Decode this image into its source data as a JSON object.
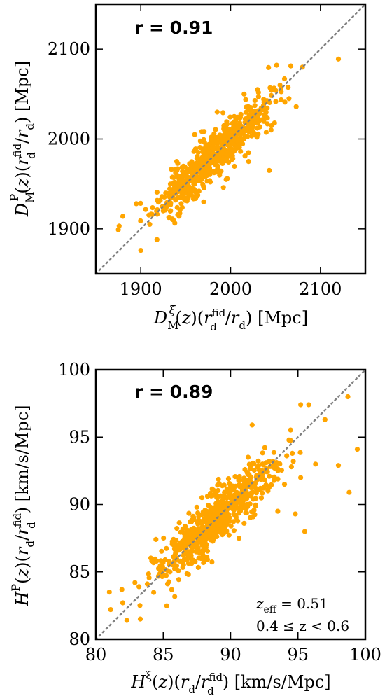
{
  "chart_data": [
    {
      "type": "scatter",
      "title": "",
      "xlabel": "D_M^ξ(z)(r_d^fid/r_d) [Mpc]",
      "ylabel": "D_M^P(z)(r_d^fid/r_d) [Mpc]",
      "xlim": [
        1850,
        2150
      ],
      "ylim": [
        1850,
        2150
      ],
      "xticks": [
        1900,
        2000,
        2100
      ],
      "yticks": [
        1900,
        2000,
        2100
      ],
      "correlation_label": "r = 0.91",
      "correlation": 0.91,
      "reference_line": "y = x",
      "color": "#ffa500",
      "n_points": 720,
      "center": [
        1980,
        1980
      ],
      "spread": 30,
      "seed": 11,
      "points": [
        [
          2120,
          2089
        ],
        [
          2080,
          2080
        ],
        [
          2060,
          2067
        ],
        [
          2073,
          2036
        ],
        [
          2043,
          1965
        ],
        [
          1992,
          1946
        ],
        [
          1875,
          1899
        ],
        [
          1900,
          1876
        ],
        [
          1918,
          1888
        ],
        [
          1880,
          1914
        ],
        [
          1895,
          1928
        ],
        [
          1910,
          1905
        ],
        [
          1925,
          1920
        ],
        [
          1940,
          1975
        ],
        [
          1995,
          1955
        ],
        [
          2015,
          2050
        ],
        [
          2030,
          2055
        ],
        [
          2055,
          2060
        ],
        [
          2065,
          2045
        ],
        [
          1960,
          2005
        ],
        [
          1970,
          1930
        ],
        [
          1985,
          2030
        ],
        [
          2020,
          1975
        ],
        [
          1950,
          1940
        ],
        [
          2045,
          2010
        ]
      ]
    },
    {
      "type": "scatter",
      "title": "",
      "xlabel": "H^ξ(z)(r_d/r_d^fid) [km/s/Mpc]",
      "ylabel": "H^P(z)(r_d/r_d^fid) [km/s/Mpc]",
      "xlim": [
        80,
        100
      ],
      "ylim": [
        80,
        100
      ],
      "xticks": [
        80,
        85,
        90,
        95,
        100
      ],
      "yticks": [
        80,
        85,
        90,
        95,
        100
      ],
      "correlation_label": "r = 0.89",
      "correlation": 0.89,
      "reference_line": "y = x",
      "color": "#ffa500",
      "n_points": 720,
      "center": [
        89,
        89
      ],
      "spread": 2.1,
      "seed": 29,
      "annotation_lines": [
        "z_eff = 0.51",
        "0.4 ≤ z < 0.6"
      ],
      "points": [
        [
          95.2,
          97.4
        ],
        [
          95.8,
          97.4
        ],
        [
          98.7,
          98.0
        ],
        [
          99.4,
          94.1
        ],
        [
          98.0,
          92.9
        ],
        [
          98.8,
          90.9
        ],
        [
          97.0,
          96.3
        ],
        [
          81.0,
          83.5
        ],
        [
          81.1,
          82.2
        ],
        [
          82.0,
          82.7
        ],
        [
          82.3,
          81.4
        ],
        [
          83.3,
          81.5
        ],
        [
          83.2,
          83.9
        ],
        [
          82.9,
          84.2
        ],
        [
          96.3,
          93.0
        ],
        [
          95.2,
          92.0
        ],
        [
          94.0,
          91.5
        ],
        [
          93.5,
          89.5
        ],
        [
          95.5,
          88.0
        ],
        [
          94.8,
          89.3
        ],
        [
          85.5,
          85.0
        ],
        [
          84.5,
          85.8
        ],
        [
          91.6,
          95.9
        ],
        [
          90.6,
          91.8
        ],
        [
          87.8,
          86.0
        ]
      ]
    }
  ]
}
